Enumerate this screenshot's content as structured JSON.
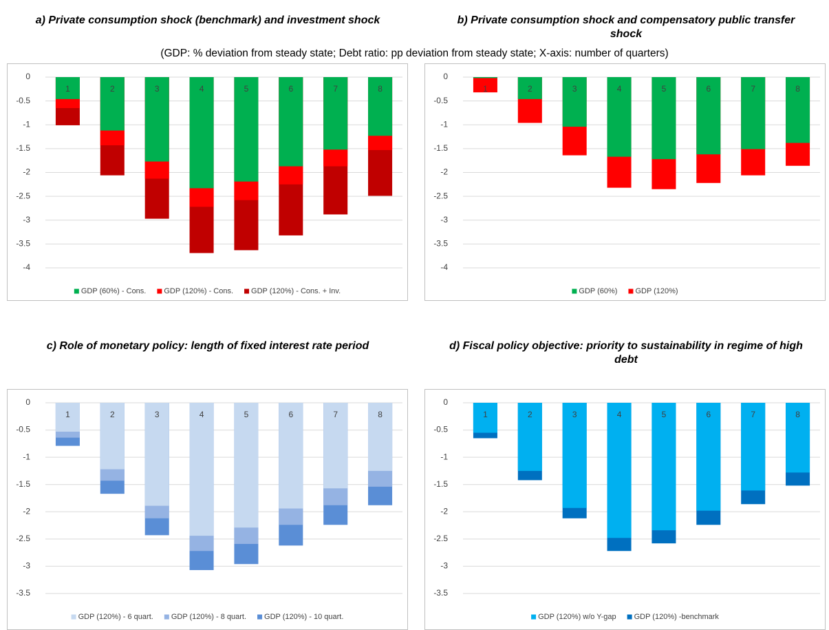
{
  "subtitle": "(GDP: % deviation from steady state; Debt ratio: pp deviation from steady state; X-axis: number of quarters)",
  "chart_data": [
    {
      "type": "bar",
      "title": "a) Private consumption shock (benchmark) and investment shock",
      "categories": [
        "1",
        "2",
        "3",
        "4",
        "5",
        "6",
        "7",
        "8"
      ],
      "series": [
        {
          "name": "GDP (60%) - Cons.",
          "color": "#00b050",
          "values": [
            -0.46,
            -1.12,
            -1.77,
            -2.33,
            -2.19,
            -1.87,
            -1.52,
            -1.23
          ]
        },
        {
          "name": "GDP (120%) - Cons.",
          "color": "#ff0000",
          "values": [
            -0.65,
            -1.43,
            -2.13,
            -2.72,
            -2.58,
            -2.25,
            -1.87,
            -1.53
          ]
        },
        {
          "name": "GDP (120%) - Cons. + Inv.",
          "color": "#c00000",
          "values": [
            -1.01,
            -2.06,
            -2.97,
            -3.69,
            -3.63,
            -3.32,
            -2.88,
            -2.49
          ]
        }
      ],
      "ylim": [
        -4,
        0
      ],
      "yticks": [
        0,
        -0.5,
        -1,
        -1.5,
        -2,
        -2.5,
        -3,
        -3.5,
        -4
      ],
      "grid": true,
      "legend": "bottom"
    },
    {
      "type": "bar",
      "title": "b) Private consumption shock and compensatory public transfer shock",
      "categories": [
        "1",
        "2",
        "3",
        "4",
        "5",
        "6",
        "7",
        "8"
      ],
      "series": [
        {
          "name": "GDP (60%)",
          "color": "#00b050",
          "values": [
            -0.02,
            -0.46,
            -1.04,
            -1.67,
            -1.72,
            -1.62,
            -1.51,
            -1.38
          ]
        },
        {
          "name": "GDP (120%)",
          "color": "#ff0000",
          "values": [
            -0.32,
            -0.96,
            -1.64,
            -2.32,
            -2.35,
            -2.22,
            -2.06,
            -1.86
          ]
        }
      ],
      "ylim": [
        -4,
        0
      ],
      "yticks": [
        0,
        -0.5,
        -1,
        -1.5,
        -2,
        -2.5,
        -3,
        -3.5,
        -4
      ],
      "grid": true,
      "legend": "bottom"
    },
    {
      "type": "bar",
      "title": "c) Role of monetary policy: length of fixed interest rate period",
      "categories": [
        "1",
        "2",
        "3",
        "4",
        "5",
        "6",
        "7",
        "8"
      ],
      "series": [
        {
          "name": "GDP (120%) - 6 quart.",
          "color": "#c6d9f0",
          "values": [
            -0.53,
            -1.22,
            -1.89,
            -2.44,
            -2.29,
            -1.94,
            -1.57,
            -1.25
          ]
        },
        {
          "name": "GDP (120%) - 8 quart.",
          "color": "#95b3e3",
          "values": [
            -0.64,
            -1.43,
            -2.12,
            -2.72,
            -2.59,
            -2.24,
            -1.88,
            -1.54
          ]
        },
        {
          "name": "GDP (120%) - 10 quart.",
          "color": "#5a8ed6",
          "values": [
            -0.79,
            -1.67,
            -2.43,
            -3.07,
            -2.96,
            -2.62,
            -2.24,
            -1.88
          ]
        }
      ],
      "ylim": [
        -3.5,
        0
      ],
      "yticks": [
        0,
        -0.5,
        -1,
        -1.5,
        -2,
        -2.5,
        -3,
        -3.5
      ],
      "grid": true,
      "legend": "bottom"
    },
    {
      "type": "bar",
      "title": "d) Fiscal policy objective: priority to sustainability in regime of high debt",
      "categories": [
        "1",
        "2",
        "3",
        "4",
        "5",
        "6",
        "7",
        "8"
      ],
      "series": [
        {
          "name": "GDP (120%) w/o Y-gap",
          "color": "#00b0f0",
          "values": [
            -0.55,
            -1.25,
            -1.93,
            -2.48,
            -2.34,
            -1.98,
            -1.61,
            -1.28
          ]
        },
        {
          "name": "GDP (120%) -benchmark",
          "color": "#0070c0",
          "values": [
            -0.65,
            -1.42,
            -2.12,
            -2.72,
            -2.58,
            -2.24,
            -1.86,
            -1.52
          ]
        }
      ],
      "ylim": [
        -3.5,
        0
      ],
      "yticks": [
        0,
        -0.5,
        -1,
        -1.5,
        -2,
        -2.5,
        -3,
        -3.5
      ],
      "grid": true,
      "legend": "bottom"
    }
  ]
}
